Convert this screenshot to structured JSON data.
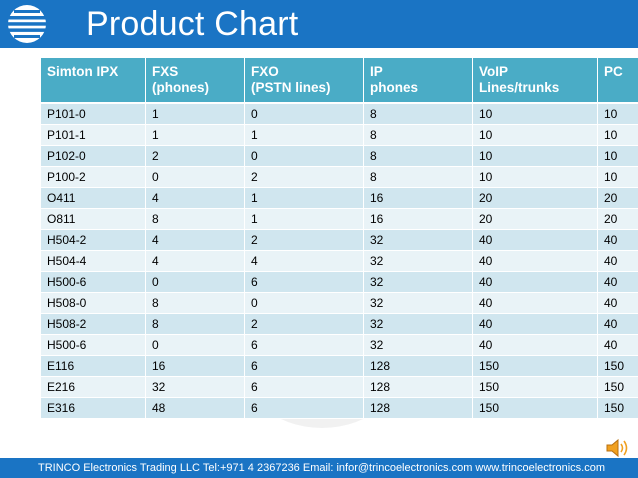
{
  "slide": {
    "title": "Product Chart",
    "footer": "TRINCO Electronics Trading LLC   Tel:+971 4 2367236    Email: infor@trincoelectronics.com  www.trincoelectronics.com"
  },
  "icons": {
    "logo": "trinco-logo-icon",
    "audio": "speaker-icon",
    "watermark": "globe-watermark-icon"
  },
  "colors": {
    "header": "#1a74c4",
    "table_header": "#4aacc6",
    "row_dark": "#d0e6ef",
    "row_light": "#e9f3f7"
  },
  "table": {
    "headers": [
      [
        "Simton IPX"
      ],
      [
        "FXS",
        "(phones)"
      ],
      [
        "FXO",
        "(PSTN lines)"
      ],
      [
        "IP",
        "phones"
      ],
      [
        "VoIP",
        "Lines/trunks"
      ],
      [
        "PC"
      ]
    ],
    "rows": [
      [
        "P101-0",
        "1",
        "0",
        "8",
        "10",
        "10"
      ],
      [
        "P101-1",
        "1",
        "1",
        "8",
        "10",
        "10"
      ],
      [
        "P102-0",
        "2",
        "0",
        "8",
        "10",
        "10"
      ],
      [
        "P100-2",
        "0",
        "2",
        "8",
        "10",
        "10"
      ],
      [
        "O411",
        "4",
        "1",
        "16",
        "20",
        "20"
      ],
      [
        "O811",
        "8",
        "1",
        "16",
        "20",
        "20"
      ],
      [
        "H504-2",
        "4",
        "2",
        "32",
        "40",
        "40"
      ],
      [
        "H504-4",
        "4",
        "4",
        "32",
        "40",
        "40"
      ],
      [
        "H500-6",
        "0",
        "6",
        "32",
        "40",
        "40"
      ],
      [
        "H508-0",
        "8",
        "0",
        "32",
        "40",
        "40"
      ],
      [
        "H508-2",
        "8",
        "2",
        "32",
        "40",
        "40"
      ],
      [
        "H500-6",
        "0",
        "6",
        "32",
        "40",
        "40"
      ],
      [
        "E116",
        "16",
        "6",
        "128",
        "150",
        "150"
      ],
      [
        "E216",
        "32",
        "6",
        "128",
        "150",
        "150"
      ],
      [
        "E316",
        "48",
        "6",
        "128",
        "150",
        "150"
      ]
    ]
  }
}
